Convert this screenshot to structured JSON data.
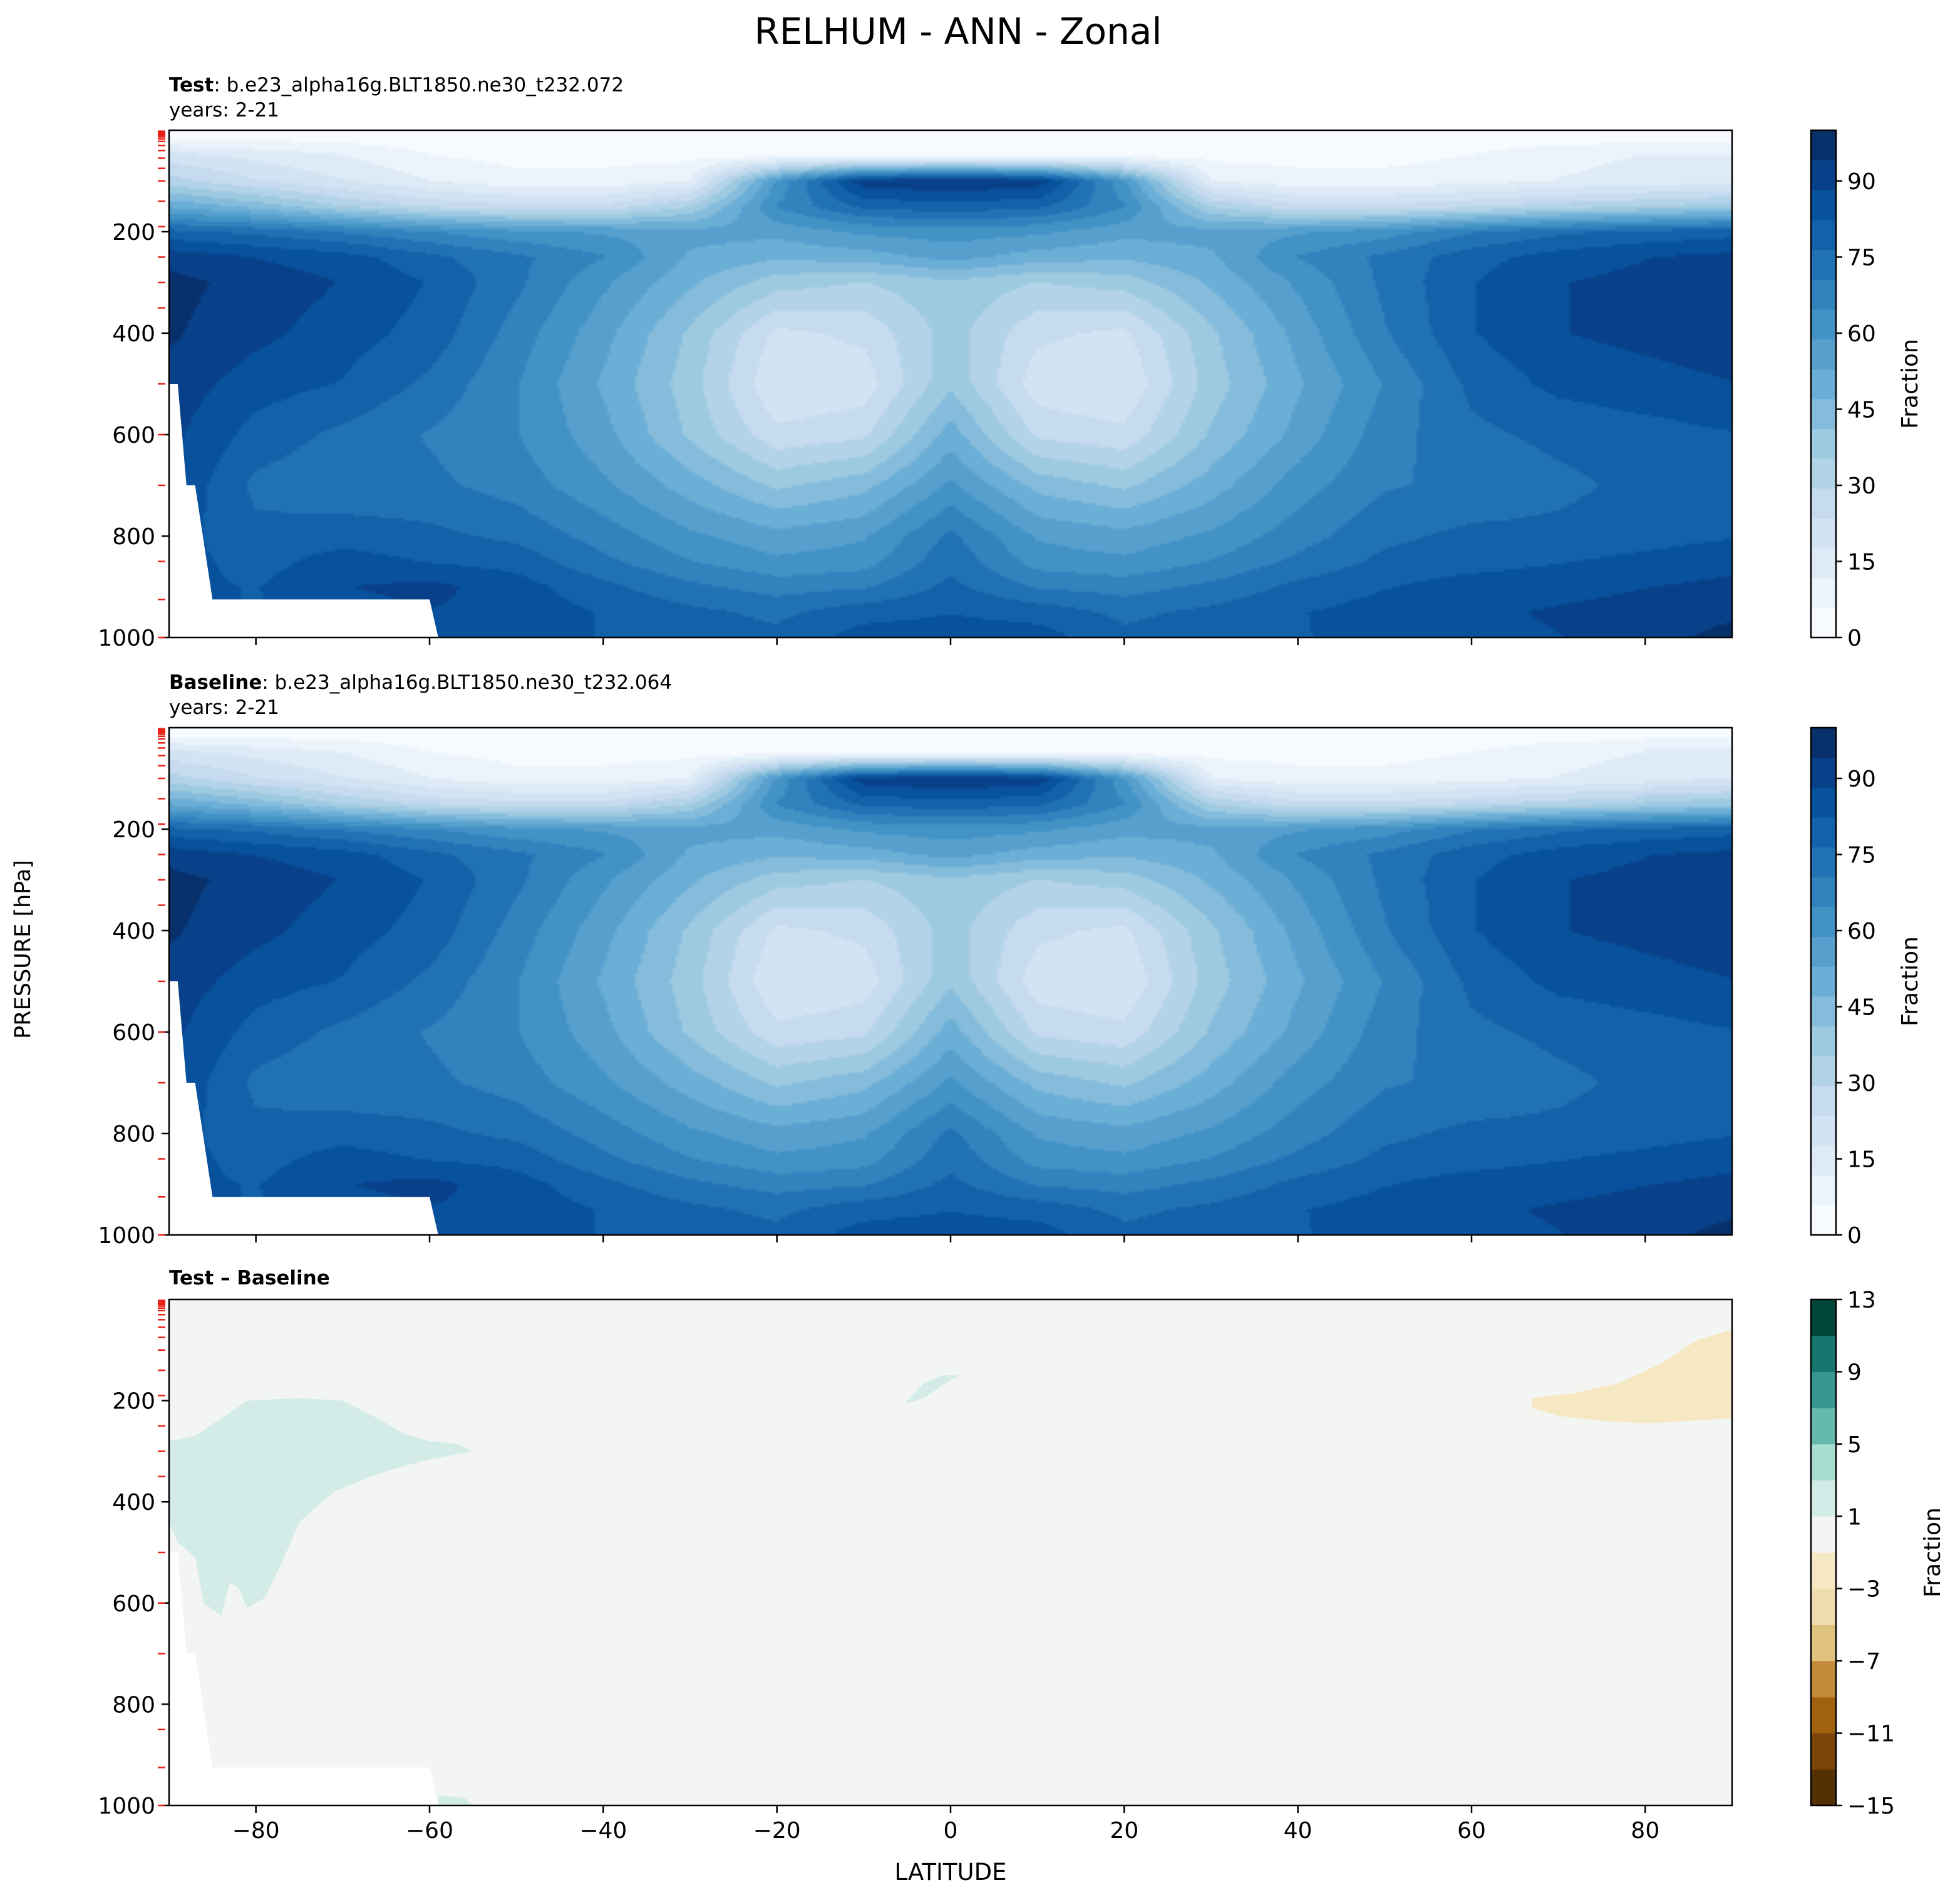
{
  "figure_title": "RELHUM - ANN - Zonal",
  "shared_ylabel": "PRESSURE [hPa]",
  "shared_xlabel": "LATITUDE",
  "colors": {
    "blues": [
      "#f7fbff",
      "#ebf3fb",
      "#deebf7",
      "#d2e3f3",
      "#c6dbef",
      "#b3d3e8",
      "#9ecae1",
      "#85bcdc",
      "#6baed6",
      "#57a0ce",
      "#4292c6",
      "#3282be",
      "#2171b5",
      "#1361a9",
      "#08519c",
      "#08418a",
      "#08306b"
    ],
    "diff_neg": [
      "#543005",
      "#7a4508",
      "#a0620e",
      "#c48a3c",
      "#dfc27d",
      "#eedcae",
      "#f6e8c3"
    ],
    "diff_zero": "#f3f5f3",
    "diff_pos": [
      "#d3ece7",
      "#a8ddd1",
      "#66b9ad",
      "#35978f",
      "#15776e",
      "#01463a"
    ],
    "marker": "#e8231a"
  },
  "chart_data": [
    {
      "type": "contourf",
      "panel": "test",
      "label_bold": "Test",
      "label_rest": ": b.e23_alpha16g.BLT1850.ne30_t232.072",
      "years": "years: 2-21",
      "xlim": [
        -90,
        90
      ],
      "ylim": [
        1000,
        0
      ],
      "x_ticks": [
        "-80",
        "-60",
        "-40",
        "-20",
        "0",
        "20",
        "40",
        "60",
        "80"
      ],
      "y_ticks": [
        "200",
        "400",
        "600",
        "800",
        "1000"
      ],
      "colorbar": {
        "label": "Fraction",
        "range": [
          0,
          100
        ],
        "ticks": [
          "0",
          "15",
          "30",
          "45",
          "60",
          "75",
          "90"
        ]
      },
      "topography_hpa": {
        "lat": [
          -90,
          -89,
          -88,
          -87,
          -85,
          -84,
          -60,
          -59,
          90
        ],
        "p": [
          500,
          500,
          700,
          700,
          925,
          925,
          925,
          1000,
          1000
        ]
      },
      "field_pct": {
        "lat": [
          -90,
          -80,
          -70,
          -60,
          -50,
          -40,
          -30,
          -20,
          -10,
          0,
          10,
          20,
          30,
          40,
          50,
          60,
          70,
          80,
          90
        ],
        "p": [
          10,
          50,
          100,
          150,
          200,
          250,
          300,
          400,
          500,
          600,
          700,
          800,
          850,
          900,
          950,
          1000
        ],
        "values": [
          [
            2,
            2,
            2,
            2,
            2,
            2,
            2,
            2,
            2,
            2,
            2,
            2,
            2,
            2,
            2,
            2,
            2,
            2,
            2
          ],
          [
            20,
            16,
            12,
            6,
            4,
            4,
            4,
            4,
            4,
            4,
            4,
            4,
            4,
            4,
            4,
            6,
            10,
            12,
            12
          ],
          [
            32,
            24,
            18,
            12,
            8,
            8,
            12,
            60,
            92,
            94,
            92,
            60,
            12,
            8,
            8,
            10,
            12,
            14,
            15
          ],
          [
            52,
            45,
            35,
            28,
            25,
            25,
            35,
            65,
            78,
            80,
            78,
            65,
            35,
            25,
            25,
            28,
            32,
            35,
            38
          ],
          [
            78,
            75,
            70,
            65,
            60,
            58,
            55,
            55,
            60,
            62,
            60,
            55,
            55,
            58,
            62,
            70,
            75,
            78,
            80
          ],
          [
            92,
            88,
            85,
            78,
            72,
            65,
            52,
            48,
            50,
            55,
            50,
            48,
            52,
            65,
            72,
            80,
            85,
            88,
            90
          ],
          [
            96,
            92,
            88,
            82,
            72,
            60,
            48,
            38,
            35,
            40,
            35,
            38,
            48,
            60,
            72,
            82,
            88,
            90,
            92
          ],
          [
            95,
            90,
            85,
            80,
            68,
            55,
            40,
            22,
            25,
            38,
            25,
            22,
            40,
            55,
            70,
            82,
            88,
            90,
            92
          ],
          [
            92,
            85,
            82,
            75,
            65,
            52,
            38,
            18,
            20,
            40,
            20,
            18,
            38,
            52,
            65,
            78,
            84,
            86,
            88
          ],
          [
            90,
            80,
            75,
            70,
            65,
            55,
            40,
            25,
            28,
            50,
            28,
            25,
            42,
            55,
            68,
            75,
            78,
            80,
            82
          ],
          [
            88,
            75,
            72,
            72,
            68,
            60,
            50,
            40,
            45,
            60,
            45,
            40,
            50,
            62,
            70,
            72,
            75,
            78,
            80
          ],
          [
            85,
            78,
            80,
            78,
            75,
            68,
            60,
            55,
            58,
            72,
            58,
            55,
            60,
            68,
            75,
            78,
            78,
            80,
            82
          ],
          [
            85,
            80,
            85,
            82,
            80,
            72,
            65,
            60,
            62,
            75,
            62,
            60,
            65,
            72,
            78,
            80,
            82,
            84,
            86
          ],
          [
            84,
            82,
            88,
            90,
            85,
            78,
            72,
            68,
            70,
            78,
            70,
            68,
            72,
            78,
            82,
            85,
            86,
            88,
            90
          ],
          [
            84,
            82,
            86,
            88,
            86,
            82,
            78,
            75,
            80,
            82,
            80,
            75,
            78,
            82,
            85,
            87,
            89,
            91,
            93
          ],
          [
            84,
            82,
            84,
            86,
            85,
            82,
            80,
            78,
            85,
            86,
            85,
            78,
            80,
            82,
            84,
            86,
            88,
            92,
            96
          ]
        ]
      }
    },
    {
      "type": "contourf",
      "panel": "baseline",
      "label_bold": "Baseline",
      "label_rest": ": b.e23_alpha16g.BLT1850.ne30_t232.064",
      "years": "years: 2-21",
      "xlim": [
        -90,
        90
      ],
      "ylim": [
        1000,
        0
      ],
      "x_ticks": [
        "-80",
        "-60",
        "-40",
        "-20",
        "0",
        "20",
        "40",
        "60",
        "80"
      ],
      "y_ticks": [
        "200",
        "400",
        "600",
        "800",
        "1000"
      ],
      "colorbar": {
        "label": "Fraction",
        "range": [
          0,
          100
        ],
        "ticks": [
          "0",
          "15",
          "30",
          "45",
          "60",
          "75",
          "90"
        ]
      },
      "topography_hpa": {
        "lat": [
          -90,
          -89,
          -88,
          -87,
          -85,
          -84,
          -60,
          -59,
          90
        ],
        "p": [
          500,
          500,
          700,
          700,
          925,
          925,
          925,
          1000,
          1000
        ]
      }
    },
    {
      "type": "contourf",
      "panel": "difference",
      "label_bold": "Test – Baseline",
      "xlim": [
        -90,
        90
      ],
      "ylim": [
        1000,
        0
      ],
      "x_ticks": [
        "-80",
        "-60",
        "-40",
        "-20",
        "0",
        "20",
        "40",
        "60",
        "80"
      ],
      "y_ticks": [
        "200",
        "400",
        "600",
        "800",
        "1000"
      ],
      "colorbar": {
        "label": "Fraction",
        "range": [
          -15,
          13
        ],
        "ticks": [
          "13",
          "9",
          "5",
          "1",
          "−3",
          "−7",
          "−11",
          "−15"
        ]
      },
      "topography_hpa": {
        "lat": [
          -90,
          -89,
          -88,
          -87,
          -85,
          -84,
          -60,
          -59,
          90
        ],
        "p": [
          500,
          500,
          700,
          700,
          925,
          925,
          925,
          1000,
          1000
        ]
      },
      "anomalies": [
        {
          "sign": "positive",
          "range": [
            1,
            5
          ],
          "lat_span": [
            -90,
            -55
          ],
          "p_span": [
            200,
            620
          ]
        },
        {
          "sign": "positive",
          "range": [
            1,
            5
          ],
          "lat_span": [
            -5,
            1
          ],
          "p_span": [
            145,
            205
          ]
        },
        {
          "sign": "negative",
          "range": [
            -3,
            -1
          ],
          "lat_span": [
            67,
            90
          ],
          "p_span": [
            60,
            245
          ]
        }
      ]
    }
  ]
}
